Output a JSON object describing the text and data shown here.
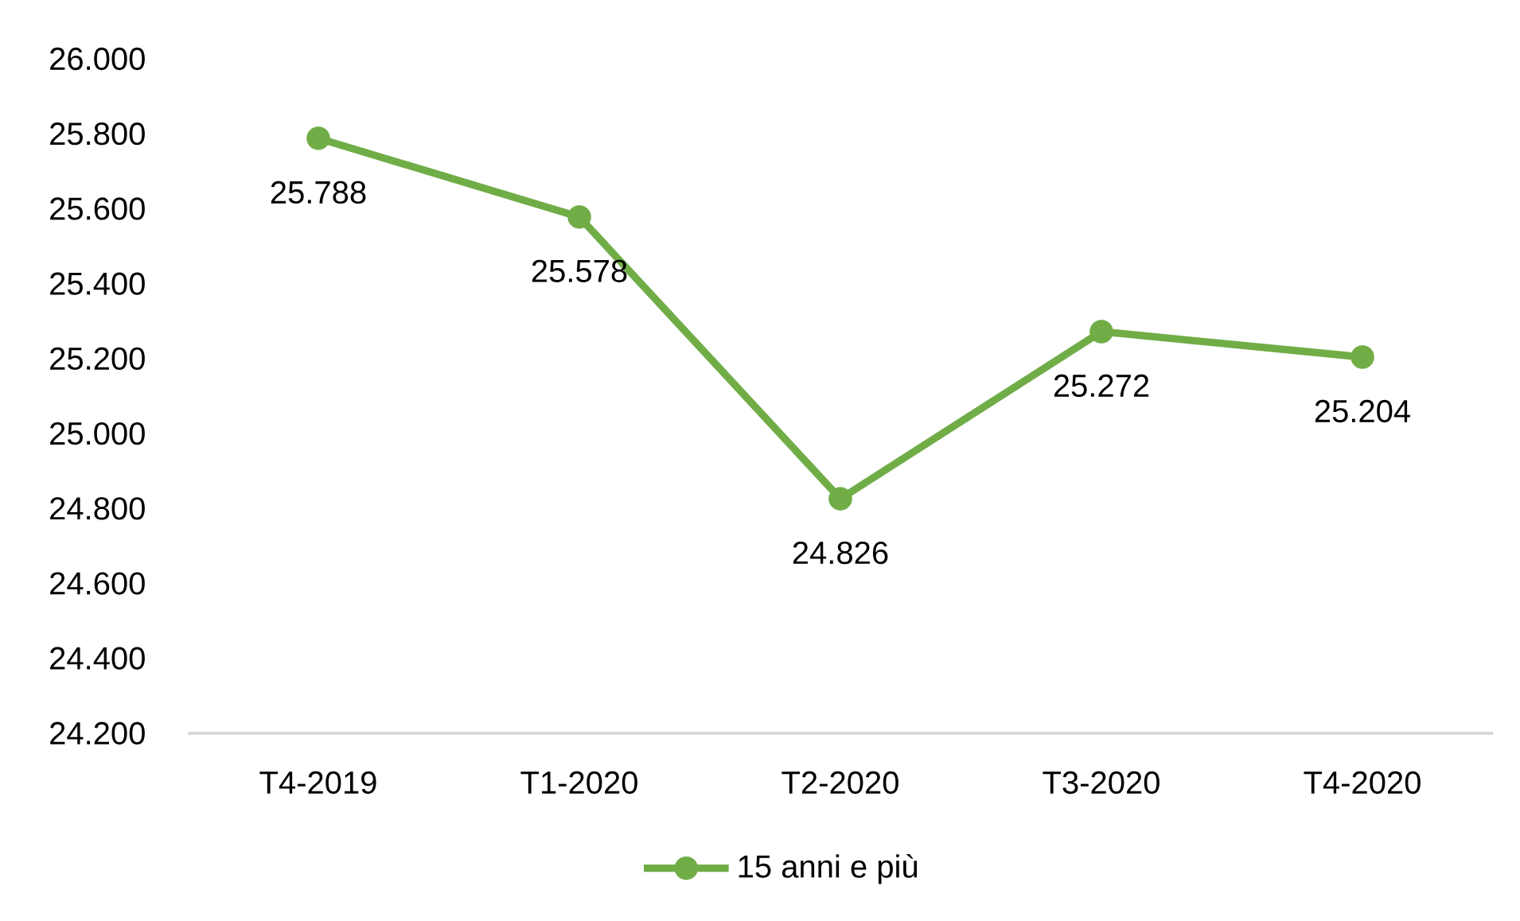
{
  "chart_data": {
    "type": "line",
    "categories": [
      "T4-2019",
      "T1-2020",
      "T2-2020",
      "T3-2020",
      "T4-2020"
    ],
    "series": [
      {
        "name": "15 anni e più",
        "color": "#70ad47",
        "values": [
          25788,
          25578,
          24826,
          25272,
          25204
        ],
        "value_labels": [
          "25.788",
          "25.578",
          "24.826",
          "25.272",
          "25.204"
        ]
      }
    ],
    "ylim": [
      24200,
      26000
    ],
    "yticks": [
      {
        "value": 24200,
        "label": "24.200"
      },
      {
        "value": 24400,
        "label": "24.400"
      },
      {
        "value": 24600,
        "label": "24.600"
      },
      {
        "value": 24800,
        "label": "24.800"
      },
      {
        "value": 25000,
        "label": "25.000"
      },
      {
        "value": 25200,
        "label": "25.200"
      },
      {
        "value": 25400,
        "label": "25.400"
      },
      {
        "value": 25600,
        "label": "25.600"
      },
      {
        "value": 25800,
        "label": "25.800"
      },
      {
        "value": 26000,
        "label": "26.000"
      }
    ],
    "legend": "bottom",
    "marker": "circle",
    "line_style": "solid"
  }
}
